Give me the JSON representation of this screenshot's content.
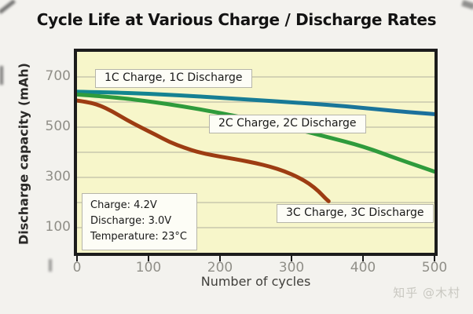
{
  "watermark": {
    "text": "知乎 @木村"
  },
  "chart_data": {
    "type": "line",
    "title": "Cycle Life at Various Charge / Discharge Rates",
    "xlabel": "Number of cycles",
    "ylabel": "Discharge capacity (mAh)",
    "xlim": [
      0,
      500
    ],
    "ylim": [
      0,
      800
    ],
    "x_ticks": [
      0,
      100,
      200,
      300,
      400,
      500
    ],
    "y_ticks": [
      100,
      300,
      500,
      700
    ],
    "gridlines_y": [
      100,
      200,
      300,
      400,
      500,
      600,
      700
    ],
    "grid": true,
    "legend_position": "inline-labels-on-plot",
    "plot_background": "#f7f6ca",
    "grid_color": "#c8c7ac",
    "frame_color": "#1c1c1c",
    "tick_label_color": "#908f88",
    "series": [
      {
        "name": "1C Charge, 1C Discharge",
        "color": "#12898e",
        "color2": "#1c6f9d",
        "points": [
          [
            0,
            641
          ],
          [
            50,
            638
          ],
          [
            100,
            633
          ],
          [
            150,
            626
          ],
          [
            200,
            617
          ],
          [
            250,
            608
          ],
          [
            300,
            599
          ],
          [
            350,
            589
          ],
          [
            400,
            577
          ],
          [
            450,
            563
          ],
          [
            500,
            552
          ]
        ]
      },
      {
        "name": "2C Charge, 2C Discharge",
        "color": "#2f9b3c",
        "points": [
          [
            0,
            630
          ],
          [
            50,
            620
          ],
          [
            100,
            603
          ],
          [
            150,
            582
          ],
          [
            200,
            557
          ],
          [
            250,
            528
          ],
          [
            300,
            497
          ],
          [
            350,
            461
          ],
          [
            400,
            424
          ],
          [
            450,
            372
          ],
          [
            500,
            323
          ]
        ]
      },
      {
        "name": "3C Charge, 3C Discharge",
        "color": "#9d3c12",
        "points": [
          [
            0,
            606
          ],
          [
            15,
            600
          ],
          [
            30,
            589
          ],
          [
            50,
            562
          ],
          [
            70,
            528
          ],
          [
            90,
            498
          ],
          [
            110,
            470
          ],
          [
            130,
            440
          ],
          [
            150,
            418
          ],
          [
            170,
            400
          ],
          [
            190,
            388
          ],
          [
            210,
            378
          ],
          [
            230,
            368
          ],
          [
            250,
            357
          ],
          [
            270,
            343
          ],
          [
            290,
            325
          ],
          [
            310,
            300
          ],
          [
            325,
            275
          ],
          [
            338,
            245
          ],
          [
            348,
            215
          ],
          [
            352,
            205
          ]
        ]
      }
    ],
    "annotation": {
      "lines": [
        "Charge: 4.2V",
        "Discharge: 3.0V",
        "Temperature: 23°C"
      ]
    }
  }
}
